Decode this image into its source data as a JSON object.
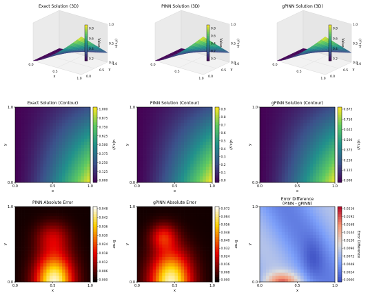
{
  "figure": {
    "panels3d": [
      {
        "title": "Exact Solution (3D)",
        "cb_label": "Value",
        "cb_ticks": [
          "0.8",
          "0.6",
          "0.4",
          "0.2"
        ],
        "z_ticks": [
          "1.0",
          "0.5",
          "0.0"
        ],
        "z_label": "u(x,y)"
      },
      {
        "title": "PINN Solution (3D)",
        "cb_label": "Value",
        "cb_ticks": [
          "0.8",
          "0.6",
          "0.4",
          "0.2",
          "0.0"
        ],
        "z_ticks": [
          "1.0",
          "0.5",
          "0.0"
        ],
        "z_label": "u(x,y)"
      },
      {
        "title": "gPINN Solution (3D)",
        "cb_label": "Value",
        "cb_ticks": [
          "0.8",
          "0.6",
          "0.4",
          "0.2"
        ],
        "z_ticks": [
          "1.0",
          "0.5",
          "0.0"
        ],
        "z_label": "u(x,y)"
      }
    ],
    "axis3d": {
      "x_ticks": [
        "0.0",
        "0.5",
        "1.0"
      ],
      "y_ticks": [
        "0.0",
        "0.5",
        "1.0"
      ],
      "x_label": "x",
      "y_label": "y"
    },
    "panels2d": [
      {
        "title": "Exact Solution (Contour)",
        "cb_label": "u(x,y)",
        "cb_ticks": [
          "1.000",
          "0.875",
          "0.750",
          "0.625",
          "0.500",
          "0.375",
          "0.250",
          "0.125",
          "0.000"
        ],
        "cmap": "viridis",
        "field": "exact"
      },
      {
        "title": "PINN Solution (Contour)",
        "cb_label": "u(x,y)",
        "cb_ticks": [
          "0.9",
          "0.8",
          "0.7",
          "0.6",
          "0.5",
          "0.4",
          "0.3",
          "0.2",
          "0.1",
          "0.0"
        ],
        "cmap": "viridis",
        "field": "pinn"
      },
      {
        "title": "gPINN Solution (Contour)",
        "cb_label": "u(x,y)",
        "cb_ticks": [
          "0.875",
          "0.750",
          "0.625",
          "0.500",
          "0.375",
          "0.250",
          "0.125",
          "0.000"
        ],
        "cmap": "viridis",
        "field": "gpinn"
      },
      {
        "title": "PINN Absolute Error",
        "cb_label": "Error",
        "cb_ticks": [
          "0.048",
          "0.042",
          "0.036",
          "0.030",
          "0.024",
          "0.018",
          "0.012",
          "0.006",
          "0.000"
        ],
        "cmap": "hot",
        "field": "err1"
      },
      {
        "title": "gPINN Absolute Error",
        "cb_label": "Error",
        "cb_ticks": [
          "0.072",
          "0.064",
          "0.056",
          "0.048",
          "0.040",
          "0.032",
          "0.024",
          "0.016",
          "0.008",
          "0.000"
        ],
        "cmap": "hot",
        "field": "err2"
      },
      {
        "title": "Error Difference",
        "title2": "(PINN - gPINN)",
        "cb_label": "Error Difference",
        "cb_ticks": [
          "0.0216",
          "0.0192",
          "0.0168",
          "0.0144",
          "0.0120",
          "0.0096",
          "0.0072",
          "0.0048",
          "0.0024",
          "0.0000"
        ],
        "cmap": "coolwarm",
        "field": "diff"
      }
    ],
    "axis2d": {
      "x_ticks": [
        "0.0",
        "0.5",
        "1.0"
      ],
      "y_ticks": [
        "0.0",
        "1.0"
      ],
      "x_label": "x",
      "y_label": "y"
    }
  },
  "chart_data": [
    {
      "type": "surface",
      "title": "Exact Solution (3D)",
      "xlabel": "x",
      "ylabel": "y",
      "zlabel": "u(x,y)",
      "xlim": [
        0,
        1
      ],
      "ylim": [
        0,
        1
      ],
      "zlim": [
        0,
        1
      ],
      "colorbar": {
        "label": "Value",
        "range": [
          0.0,
          0.9
        ]
      }
    },
    {
      "type": "surface",
      "title": "PINN Solution (3D)",
      "xlabel": "",
      "ylabel": "y",
      "zlabel": "u(x,y)",
      "xlim": [
        0,
        1
      ],
      "ylim": [
        0,
        1
      ],
      "zlim": [
        0,
        1
      ],
      "colorbar": {
        "label": "Value",
        "range": [
          0.0,
          0.85
        ]
      }
    },
    {
      "type": "surface",
      "title": "gPINN Solution (3D)",
      "xlabel": "",
      "ylabel": "y",
      "zlabel": "u(x,y)",
      "xlim": [
        0,
        1
      ],
      "ylim": [
        0,
        1
      ],
      "zlim": [
        0,
        1
      ],
      "colorbar": {
        "label": "Value",
        "range": [
          0.0,
          0.88
        ]
      }
    },
    {
      "type": "heatmap",
      "title": "Exact Solution (Contour)",
      "xlabel": "x",
      "ylabel": "y",
      "xlim": [
        0,
        1
      ],
      "ylim": [
        0,
        1
      ],
      "colorbar": {
        "label": "u(x,y)",
        "range": [
          0.0,
          1.0
        ]
      }
    },
    {
      "type": "heatmap",
      "title": "PINN Solution (Contour)",
      "xlabel": "x",
      "ylabel": "y",
      "xlim": [
        0,
        1
      ],
      "ylim": [
        0,
        1
      ],
      "colorbar": {
        "label": "u(x,y)",
        "range": [
          0.0,
          0.95
        ]
      }
    },
    {
      "type": "heatmap",
      "title": "gPINN Solution (Contour)",
      "xlabel": "x",
      "ylabel": "y",
      "xlim": [
        0,
        1
      ],
      "ylim": [
        0,
        1
      ],
      "colorbar": {
        "label": "u(x,y)",
        "range": [
          0.0,
          0.9
        ]
      }
    },
    {
      "type": "heatmap",
      "title": "PINN Absolute Error",
      "xlabel": "x",
      "ylabel": "y",
      "xlim": [
        0,
        1
      ],
      "ylim": [
        0,
        1
      ],
      "colorbar": {
        "label": "Error",
        "range": [
          0.0,
          0.051
        ]
      }
    },
    {
      "type": "heatmap",
      "title": "gPINN Absolute Error",
      "xlabel": "x",
      "ylabel": "y",
      "xlim": [
        0,
        1
      ],
      "ylim": [
        0,
        1
      ],
      "colorbar": {
        "label": "Error",
        "range": [
          0.0,
          0.072
        ]
      }
    },
    {
      "type": "heatmap",
      "title": "Error Difference (PINN - gPINN)",
      "xlabel": "x",
      "ylabel": "y",
      "xlim": [
        0,
        1
      ],
      "ylim": [
        0,
        1
      ],
      "colorbar": {
        "label": "Error Difference",
        "range": [
          0.0,
          0.0216
        ]
      }
    }
  ]
}
